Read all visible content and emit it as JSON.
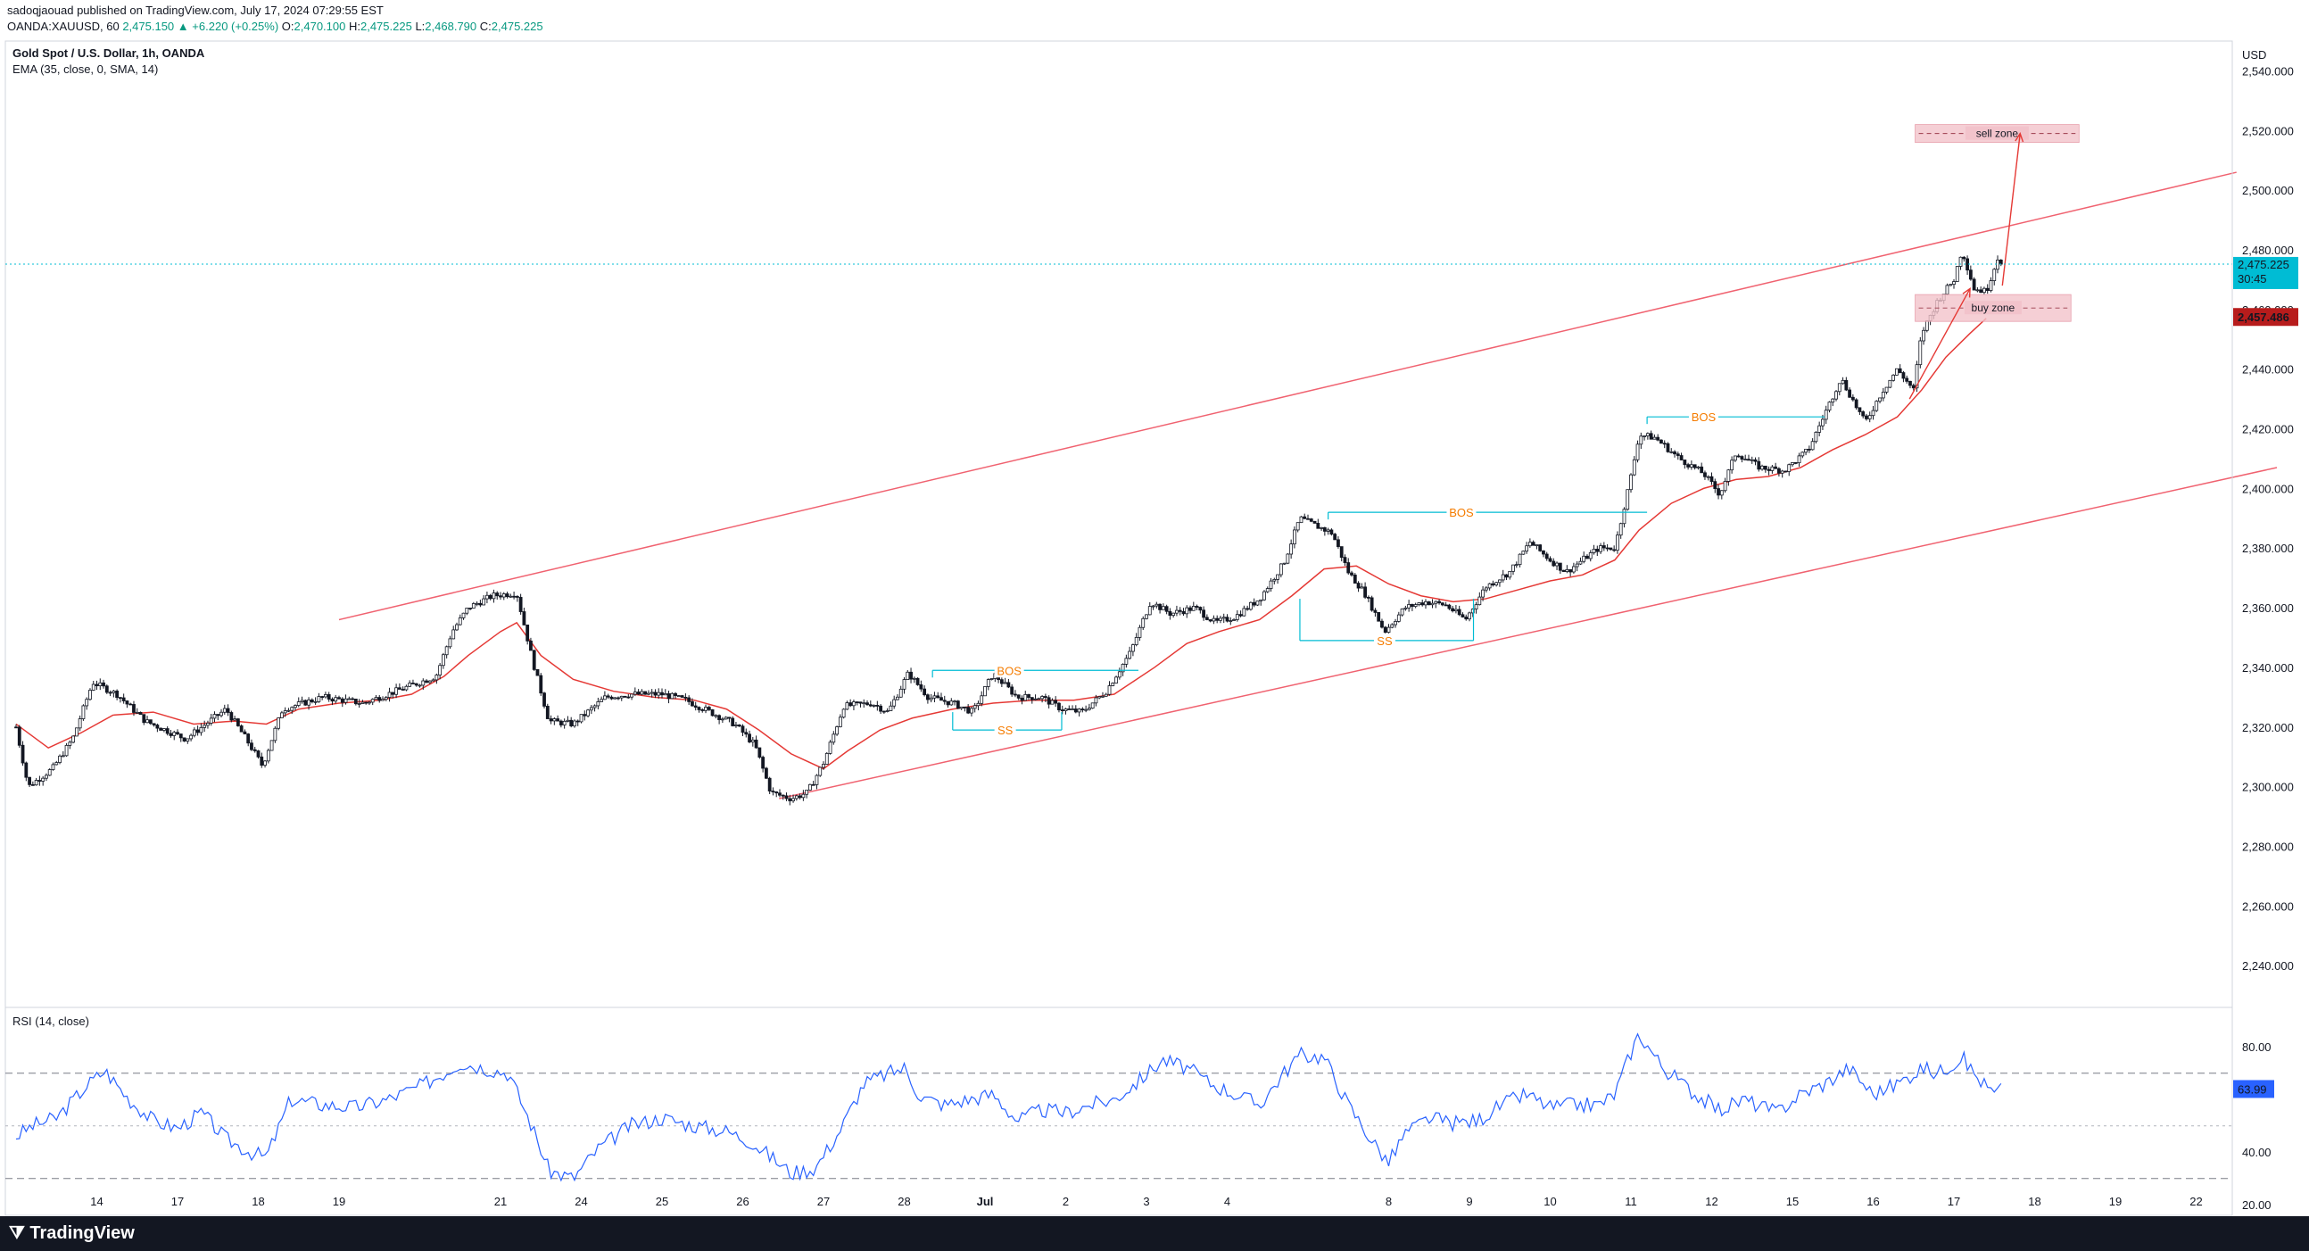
{
  "header": {
    "publisher": "sadoqjaouad published on TradingView.com, July 17, 2024 07:29:55 EST",
    "symbol": "OANDA:XAUUSD, 60",
    "last": "2,475.150",
    "change": "+6.220 (+0.25%)",
    "open": "2,470.100",
    "high": "2,475.225",
    "low": "2,468.790",
    "close": "2,475.225"
  },
  "main_pane": {
    "title": "Gold Spot / U.S. Dollar, 1h, OANDA",
    "indicator": "EMA (35, close, 0, SMA, 14)",
    "currency": "USD"
  },
  "rsi_pane": {
    "title": "RSI (14, close)"
  },
  "footer": {
    "brand": "TradingView"
  },
  "colors": {
    "up": "#131722",
    "down": "#131722",
    "ema": "#e53935",
    "channel": "#f06270",
    "structure": "#00bcd4",
    "annotation": "#f57c00",
    "zone_fill": "#f2c3cb",
    "rsi": "#2962ff",
    "price_badge": "#00bcd4",
    "ema_badge": "#b71c1c"
  },
  "chart_data": [
    {
      "type": "candlestick",
      "title": "Gold Spot / U.S. Dollar, 1h, OANDA",
      "y_ticks": [
        2240,
        2260,
        2280,
        2300,
        2320,
        2340,
        2360,
        2380,
        2400,
        2420,
        2440,
        2460,
        2480,
        2500,
        2520,
        2540
      ],
      "y_tick_labels": [
        "2,240.000",
        "2,260.000",
        "2,280.000",
        "2,300.000",
        "2,320.000",
        "2,340.000",
        "2,360.000",
        "2,380.000",
        "2,400.000",
        "2,420.000",
        "2,440.000",
        "2,460.000",
        "2,480.000",
        "2,500.000",
        "2,520.000",
        "2,540.000"
      ],
      "ylim": [
        2226,
        2550
      ],
      "x_ticks": [
        {
          "label": "14",
          "day": 1
        },
        {
          "label": "17",
          "day": 2
        },
        {
          "label": "18",
          "day": 3
        },
        {
          "label": "19",
          "day": 4
        },
        {
          "label": "21",
          "day": 6
        },
        {
          "label": "24",
          "day": 7
        },
        {
          "label": "25",
          "day": 8
        },
        {
          "label": "26",
          "day": 9
        },
        {
          "label": "27",
          "day": 10
        },
        {
          "label": "28",
          "day": 11
        },
        {
          "label": "Jul",
          "day": 12
        },
        {
          "label": "2",
          "day": 13
        },
        {
          "label": "3",
          "day": 14
        },
        {
          "label": "4",
          "day": 15
        },
        {
          "label": "8",
          "day": 17
        },
        {
          "label": "9",
          "day": 18
        },
        {
          "label": "10",
          "day": 19
        },
        {
          "label": "11",
          "day": 20
        },
        {
          "label": "12",
          "day": 21
        },
        {
          "label": "15",
          "day": 22
        },
        {
          "label": "16",
          "day": 23
        },
        {
          "label": "17",
          "day": 24
        },
        {
          "label": "18",
          "day": 25
        },
        {
          "label": "19",
          "day": 26
        },
        {
          "label": "22",
          "day": 27
        }
      ],
      "price_path": [
        [
          0.0,
          2320
        ],
        [
          0.15,
          2300
        ],
        [
          0.45,
          2306
        ],
        [
          0.7,
          2316
        ],
        [
          0.95,
          2335
        ],
        [
          1.25,
          2331
        ],
        [
          1.6,
          2322
        ],
        [
          2.1,
          2316
        ],
        [
          2.6,
          2326
        ],
        [
          2.85,
          2316
        ],
        [
          3.05,
          2307
        ],
        [
          3.3,
          2326
        ],
        [
          3.8,
          2330
        ],
        [
          4.3,
          2328
        ],
        [
          4.8,
          2333
        ],
        [
          5.2,
          2337
        ],
        [
          5.4,
          2352
        ],
        [
          5.6,
          2360
        ],
        [
          5.9,
          2364
        ],
        [
          6.2,
          2365
        ],
        [
          6.4,
          2342
        ],
        [
          6.6,
          2322
        ],
        [
          6.9,
          2321
        ],
        [
          7.3,
          2330
        ],
        [
          7.6,
          2331
        ],
        [
          8.0,
          2331
        ],
        [
          8.3,
          2329
        ],
        [
          8.6,
          2325
        ],
        [
          8.9,
          2321
        ],
        [
          9.15,
          2314
        ],
        [
          9.35,
          2298
        ],
        [
          9.6,
          2296
        ],
        [
          9.8,
          2298
        ],
        [
          10.0,
          2308
        ],
        [
          10.25,
          2327
        ],
        [
          10.6,
          2328
        ],
        [
          10.8,
          2325
        ],
        [
          11.05,
          2338
        ],
        [
          11.3,
          2330
        ],
        [
          11.6,
          2328
        ],
        [
          11.85,
          2325
        ],
        [
          12.1,
          2338
        ],
        [
          12.4,
          2330
        ],
        [
          12.7,
          2330
        ],
        [
          12.95,
          2326
        ],
        [
          13.2,
          2325
        ],
        [
          13.5,
          2332
        ],
        [
          13.8,
          2345
        ],
        [
          14.05,
          2362
        ],
        [
          14.3,
          2358
        ],
        [
          14.6,
          2360
        ],
        [
          14.85,
          2355
        ],
        [
          15.1,
          2357
        ],
        [
          15.4,
          2363
        ],
        [
          15.7,
          2375
        ],
        [
          15.9,
          2390
        ],
        [
          16.3,
          2385
        ],
        [
          16.5,
          2372
        ],
        [
          16.7,
          2365
        ],
        [
          16.95,
          2352
        ],
        [
          17.2,
          2360
        ],
        [
          17.45,
          2362
        ],
        [
          17.7,
          2361
        ],
        [
          17.95,
          2356
        ],
        [
          18.2,
          2367
        ],
        [
          18.5,
          2372
        ],
        [
          18.75,
          2382
        ],
        [
          19.0,
          2376
        ],
        [
          19.2,
          2372
        ],
        [
          19.4,
          2376
        ],
        [
          19.6,
          2380
        ],
        [
          19.8,
          2380
        ],
        [
          20.0,
          2404
        ],
        [
          20.1,
          2418
        ],
        [
          20.3,
          2417
        ],
        [
          20.6,
          2410
        ],
        [
          20.9,
          2405
        ],
        [
          21.1,
          2398
        ],
        [
          21.3,
          2412
        ],
        [
          21.6,
          2407
        ],
        [
          21.9,
          2406
        ],
        [
          22.2,
          2413
        ],
        [
          22.4,
          2425
        ],
        [
          22.6,
          2437
        ],
        [
          22.9,
          2422
        ],
        [
          23.1,
          2432
        ],
        [
          23.3,
          2440
        ],
        [
          23.5,
          2433
        ],
        [
          23.6,
          2452
        ],
        [
          23.8,
          2463
        ],
        [
          24.0,
          2470
        ],
        [
          24.1,
          2480
        ],
        [
          24.25,
          2467
        ],
        [
          24.4,
          2466
        ],
        [
          24.55,
          2478
        ],
        [
          24.6,
          2475
        ]
      ],
      "ema_path": [
        [
          0.0,
          2321
        ],
        [
          0.4,
          2313
        ],
        [
          0.8,
          2318
        ],
        [
          1.2,
          2324
        ],
        [
          1.7,
          2325
        ],
        [
          2.2,
          2321
        ],
        [
          2.7,
          2322
        ],
        [
          3.1,
          2321
        ],
        [
          3.5,
          2326
        ],
        [
          4.0,
          2328
        ],
        [
          4.5,
          2329
        ],
        [
          4.9,
          2331
        ],
        [
          5.3,
          2337
        ],
        [
          5.6,
          2344
        ],
        [
          6.0,
          2352
        ],
        [
          6.2,
          2355
        ],
        [
          6.5,
          2344
        ],
        [
          6.9,
          2336
        ],
        [
          7.4,
          2332
        ],
        [
          7.9,
          2330
        ],
        [
          8.4,
          2329
        ],
        [
          8.8,
          2326
        ],
        [
          9.2,
          2319
        ],
        [
          9.6,
          2311
        ],
        [
          10.0,
          2306
        ],
        [
          10.3,
          2312
        ],
        [
          10.7,
          2319
        ],
        [
          11.1,
          2323
        ],
        [
          11.6,
          2326
        ],
        [
          12.1,
          2328
        ],
        [
          12.6,
          2329
        ],
        [
          13.1,
          2329
        ],
        [
          13.6,
          2331
        ],
        [
          14.1,
          2340
        ],
        [
          14.5,
          2348
        ],
        [
          14.9,
          2352
        ],
        [
          15.4,
          2356
        ],
        [
          15.8,
          2364
        ],
        [
          16.2,
          2373
        ],
        [
          16.6,
          2374
        ],
        [
          17.0,
          2368
        ],
        [
          17.4,
          2364
        ],
        [
          17.8,
          2362
        ],
        [
          18.2,
          2363
        ],
        [
          18.6,
          2366
        ],
        [
          19.0,
          2369
        ],
        [
          19.4,
          2371
        ],
        [
          19.8,
          2376
        ],
        [
          20.1,
          2386
        ],
        [
          20.5,
          2395
        ],
        [
          20.9,
          2400
        ],
        [
          21.3,
          2403
        ],
        [
          21.7,
          2404
        ],
        [
          22.1,
          2407
        ],
        [
          22.5,
          2413
        ],
        [
          22.9,
          2418
        ],
        [
          23.3,
          2424
        ],
        [
          23.6,
          2433
        ],
        [
          23.9,
          2444
        ],
        [
          24.2,
          2452
        ],
        [
          24.4,
          2457
        ]
      ],
      "last_price": 2475.225,
      "last_price_label": "2,475.225",
      "countdown": "30:45",
      "ema_last": 2457.486,
      "ema_last_label": "2,457.486",
      "channel_upper": [
        [
          4.0,
          2356
        ],
        [
          27.5,
          2506
        ]
      ],
      "channel_lower": [
        [
          9.45,
          2296
        ],
        [
          28.0,
          2407
        ]
      ],
      "annotations": [
        {
          "label": "BOS",
          "type": "bos",
          "x1": 11.35,
          "x2": 13.9,
          "y": 2339,
          "label_x": 12.3
        },
        {
          "label": "BOS",
          "type": "bos",
          "x1": 16.25,
          "x2": 20.2,
          "y": 2392,
          "label_x": 17.9
        },
        {
          "label": "BOS",
          "type": "bos",
          "x1": 20.2,
          "x2": 22.4,
          "y": 2424,
          "label_x": 20.9
        },
        {
          "label": "SS",
          "type": "ss",
          "x1": 11.6,
          "x2": 12.95,
          "y": 2319,
          "tick_y": 2325,
          "label_x": 12.25
        },
        {
          "label": "SS",
          "type": "ss",
          "x1": 15.9,
          "x2": 18.05,
          "y": 2349,
          "tick_y": 2363,
          "label_x": 16.95
        }
      ],
      "zones": [
        {
          "label": "sell zone",
          "x1": 23.52,
          "x2": 25.55,
          "y1": 2516,
          "y2": 2522
        },
        {
          "label": "buy zone",
          "x1": 23.52,
          "x2": 25.45,
          "y1": 2456,
          "y2": 2465
        }
      ],
      "arrows": [
        {
          "from": [
            23.45,
            2430
          ],
          "to": [
            24.2,
            2467
          ]
        },
        {
          "from": [
            24.6,
            2468
          ],
          "to": [
            24.82,
            2519
          ]
        }
      ]
    },
    {
      "type": "line",
      "title": "RSI (14, close)",
      "ylim": [
        16,
        95
      ],
      "y_ticks": [
        20,
        40,
        80
      ],
      "y_tick_labels": [
        "20.00",
        "40.00",
        "80.00"
      ],
      "levels": [
        70,
        50,
        30
      ],
      "last_value": 63.99,
      "last_value_label": "63.99",
      "rsi_path": [
        [
          0.0,
          46
        ],
        [
          0.2,
          50
        ],
        [
          0.5,
          53
        ],
        [
          0.9,
          66
        ],
        [
          1.1,
          71
        ],
        [
          1.4,
          60
        ],
        [
          1.7,
          52
        ],
        [
          2.0,
          49
        ],
        [
          2.3,
          55
        ],
        [
          2.6,
          45
        ],
        [
          2.9,
          40
        ],
        [
          3.1,
          38
        ],
        [
          3.4,
          60
        ],
        [
          3.8,
          58
        ],
        [
          4.2,
          57
        ],
        [
          4.6,
          60
        ],
        [
          5.0,
          65
        ],
        [
          5.3,
          70
        ],
        [
          5.5,
          74
        ],
        [
          5.8,
          72
        ],
        [
          6.1,
          70
        ],
        [
          6.4,
          49
        ],
        [
          6.6,
          33
        ],
        [
          6.9,
          30
        ],
        [
          7.2,
          41
        ],
        [
          7.6,
          50
        ],
        [
          8.0,
          53
        ],
        [
          8.4,
          50
        ],
        [
          8.8,
          48
        ],
        [
          9.1,
          44
        ],
        [
          9.4,
          37
        ],
        [
          9.6,
          32
        ],
        [
          9.9,
          34
        ],
        [
          10.2,
          48
        ],
        [
          10.5,
          66
        ],
        [
          10.8,
          70
        ],
        [
          11.0,
          72
        ],
        [
          11.2,
          61
        ],
        [
          11.5,
          58
        ],
        [
          11.8,
          60
        ],
        [
          12.1,
          62
        ],
        [
          12.4,
          52
        ],
        [
          12.7,
          56
        ],
        [
          13.0,
          55
        ],
        [
          13.3,
          58
        ],
        [
          13.6,
          60
        ],
        [
          13.9,
          67
        ],
        [
          14.2,
          75
        ],
        [
          14.5,
          72
        ],
        [
          14.8,
          66
        ],
        [
          15.1,
          62
        ],
        [
          15.4,
          58
        ],
        [
          15.7,
          70
        ],
        [
          15.9,
          77
        ],
        [
          16.2,
          76
        ],
        [
          16.5,
          58
        ],
        [
          16.8,
          44
        ],
        [
          17.0,
          36
        ],
        [
          17.2,
          47
        ],
        [
          17.5,
          53
        ],
        [
          17.8,
          51
        ],
        [
          18.1,
          52
        ],
        [
          18.4,
          58
        ],
        [
          18.7,
          62
        ],
        [
          19.0,
          57
        ],
        [
          19.3,
          58
        ],
        [
          19.6,
          58
        ],
        [
          19.8,
          62
        ],
        [
          20.0,
          78
        ],
        [
          20.1,
          85
        ],
        [
          20.4,
          72
        ],
        [
          20.8,
          62
        ],
        [
          21.1,
          56
        ],
        [
          21.4,
          60
        ],
        [
          21.8,
          55
        ],
        [
          22.1,
          62
        ],
        [
          22.4,
          66
        ],
        [
          22.7,
          72
        ],
        [
          23.0,
          62
        ],
        [
          23.3,
          66
        ],
        [
          23.6,
          72
        ],
        [
          23.8,
          70
        ],
        [
          24.1,
          76
        ],
        [
          24.3,
          68
        ],
        [
          24.5,
          62
        ],
        [
          24.6,
          64
        ]
      ]
    }
  ]
}
